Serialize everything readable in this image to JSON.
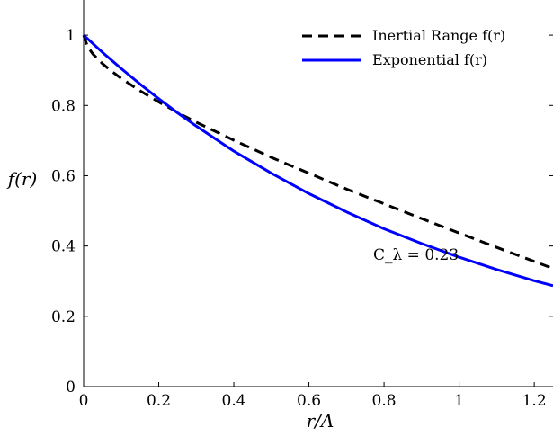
{
  "chart_data": {
    "type": "line",
    "title": "",
    "xlabel": "r/Λ",
    "ylabel": "f(r)",
    "xlim": [
      0,
      1.25
    ],
    "ylim": [
      0,
      1.1
    ],
    "grid": false,
    "legend_position": "top-right",
    "x_ticks": [
      0,
      0.2,
      0.4,
      0.6,
      0.8,
      1,
      1.2
    ],
    "x_tick_labels": [
      "0",
      "0.2",
      "0.4",
      "0.6",
      "0.8",
      "1",
      "1.2"
    ],
    "y_ticks": [
      0,
      0.2,
      0.4,
      0.6,
      0.8,
      1
    ],
    "y_tick_labels": [
      "0",
      "0.2",
      "0.4",
      "0.6",
      "0.8",
      "1"
    ],
    "annotation": {
      "text": "C_λ = 0.23",
      "x": 1.05,
      "y": 0.32
    },
    "series": [
      {
        "name": "Inertial Range f(r)",
        "style": "dashed",
        "color": "#000000",
        "x": [
          0,
          0.01,
          0.025,
          0.05,
          0.075,
          0.1,
          0.15,
          0.2,
          0.25,
          0.3,
          0.4,
          0.5,
          0.6,
          0.7,
          0.8,
          0.9,
          1.0,
          1.1,
          1.2,
          1.25
        ],
        "y": [
          1.0,
          0.968,
          0.946,
          0.919,
          0.897,
          0.877,
          0.842,
          0.81,
          0.78,
          0.752,
          0.701,
          0.652,
          0.607,
          0.562,
          0.52,
          0.478,
          0.437,
          0.396,
          0.356,
          0.336
        ]
      },
      {
        "name": "Exponential f(r)",
        "style": "solid",
        "color": "#0000ff",
        "x": [
          0,
          0.05,
          0.1,
          0.15,
          0.2,
          0.25,
          0.3,
          0.4,
          0.5,
          0.6,
          0.7,
          0.8,
          0.9,
          1.0,
          1.1,
          1.2,
          1.25
        ],
        "y": [
          1.0,
          0.951,
          0.905,
          0.861,
          0.819,
          0.779,
          0.741,
          0.67,
          0.607,
          0.549,
          0.497,
          0.449,
          0.407,
          0.368,
          0.333,
          0.301,
          0.287
        ]
      }
    ]
  }
}
